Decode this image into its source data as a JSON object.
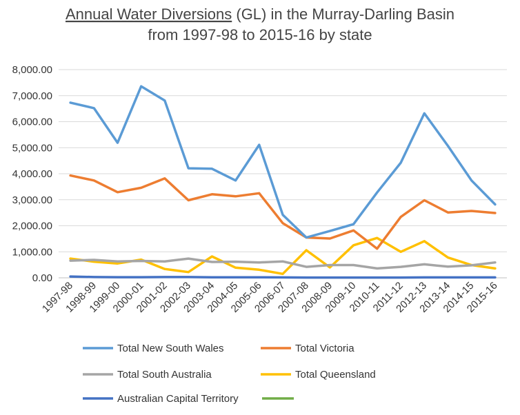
{
  "chart_data": {
    "type": "line",
    "title_underlined": "Annual Water Diversions",
    "title_rest": " (GL) in the Murray-Darling Basin",
    "subtitle": "from 1997-98 to 2015-16 by state",
    "xlabel": "",
    "ylabel": "",
    "ylim": [
      0,
      8000
    ],
    "yticks": [
      "0.00",
      "1,000.00",
      "2,000.00",
      "3,000.00",
      "4,000.00",
      "5,000.00",
      "6,000.00",
      "7,000.00",
      "8,000.00"
    ],
    "categories": [
      "1997-98",
      "1998-99",
      "1999-00",
      "2000-01",
      "2001-02",
      "2002-03",
      "2003-04",
      "2004-05",
      "2005-06",
      "2006-07",
      "2007-08",
      "2008-09",
      "2009-10",
      "2010-11",
      "2011-12",
      "2012-13",
      "2013-14",
      "2014-15",
      "2015-16"
    ],
    "legend_position": "bottom",
    "series": [
      {
        "name": "Total New South Wales",
        "color": "#5B9BD5",
        "values": [
          6730,
          6520,
          5190,
          7360,
          6810,
          4210,
          4190,
          3740,
          5110,
          2420,
          1550,
          1800,
          2060,
          3280,
          4420,
          6320,
          5070,
          3740,
          2820
        ]
      },
      {
        "name": "Total Victoria",
        "color": "#ED7D31",
        "values": [
          3930,
          3740,
          3290,
          3460,
          3820,
          2980,
          3210,
          3130,
          3250,
          2100,
          1550,
          1510,
          1820,
          1120,
          2340,
          2980,
          2510,
          2570,
          2490
        ]
      },
      {
        "name": "Total South Australia",
        "color": "#A5A5A5",
        "values": [
          660,
          690,
          630,
          650,
          630,
          740,
          610,
          620,
          590,
          630,
          420,
          490,
          490,
          360,
          420,
          520,
          430,
          480,
          590
        ]
      },
      {
        "name": "Total Queensland",
        "color": "#FFC000",
        "values": [
          740,
          620,
          550,
          700,
          340,
          220,
          820,
          390,
          310,
          150,
          1060,
          400,
          1250,
          1530,
          1000,
          1410,
          780,
          490,
          360
        ]
      },
      {
        "name": "Australian Capital Territory",
        "color": "#4472C4",
        "values": [
          50,
          30,
          25,
          25,
          30,
          30,
          20,
          20,
          20,
          15,
          10,
          10,
          10,
          10,
          10,
          15,
          15,
          15,
          15
        ]
      },
      {
        "name": "",
        "color": "#70AD47",
        "values": [
          0,
          0,
          0,
          0,
          0,
          0,
          0,
          0,
          0,
          0,
          0,
          0,
          0,
          0,
          0,
          0,
          0,
          0,
          0
        ]
      }
    ]
  }
}
